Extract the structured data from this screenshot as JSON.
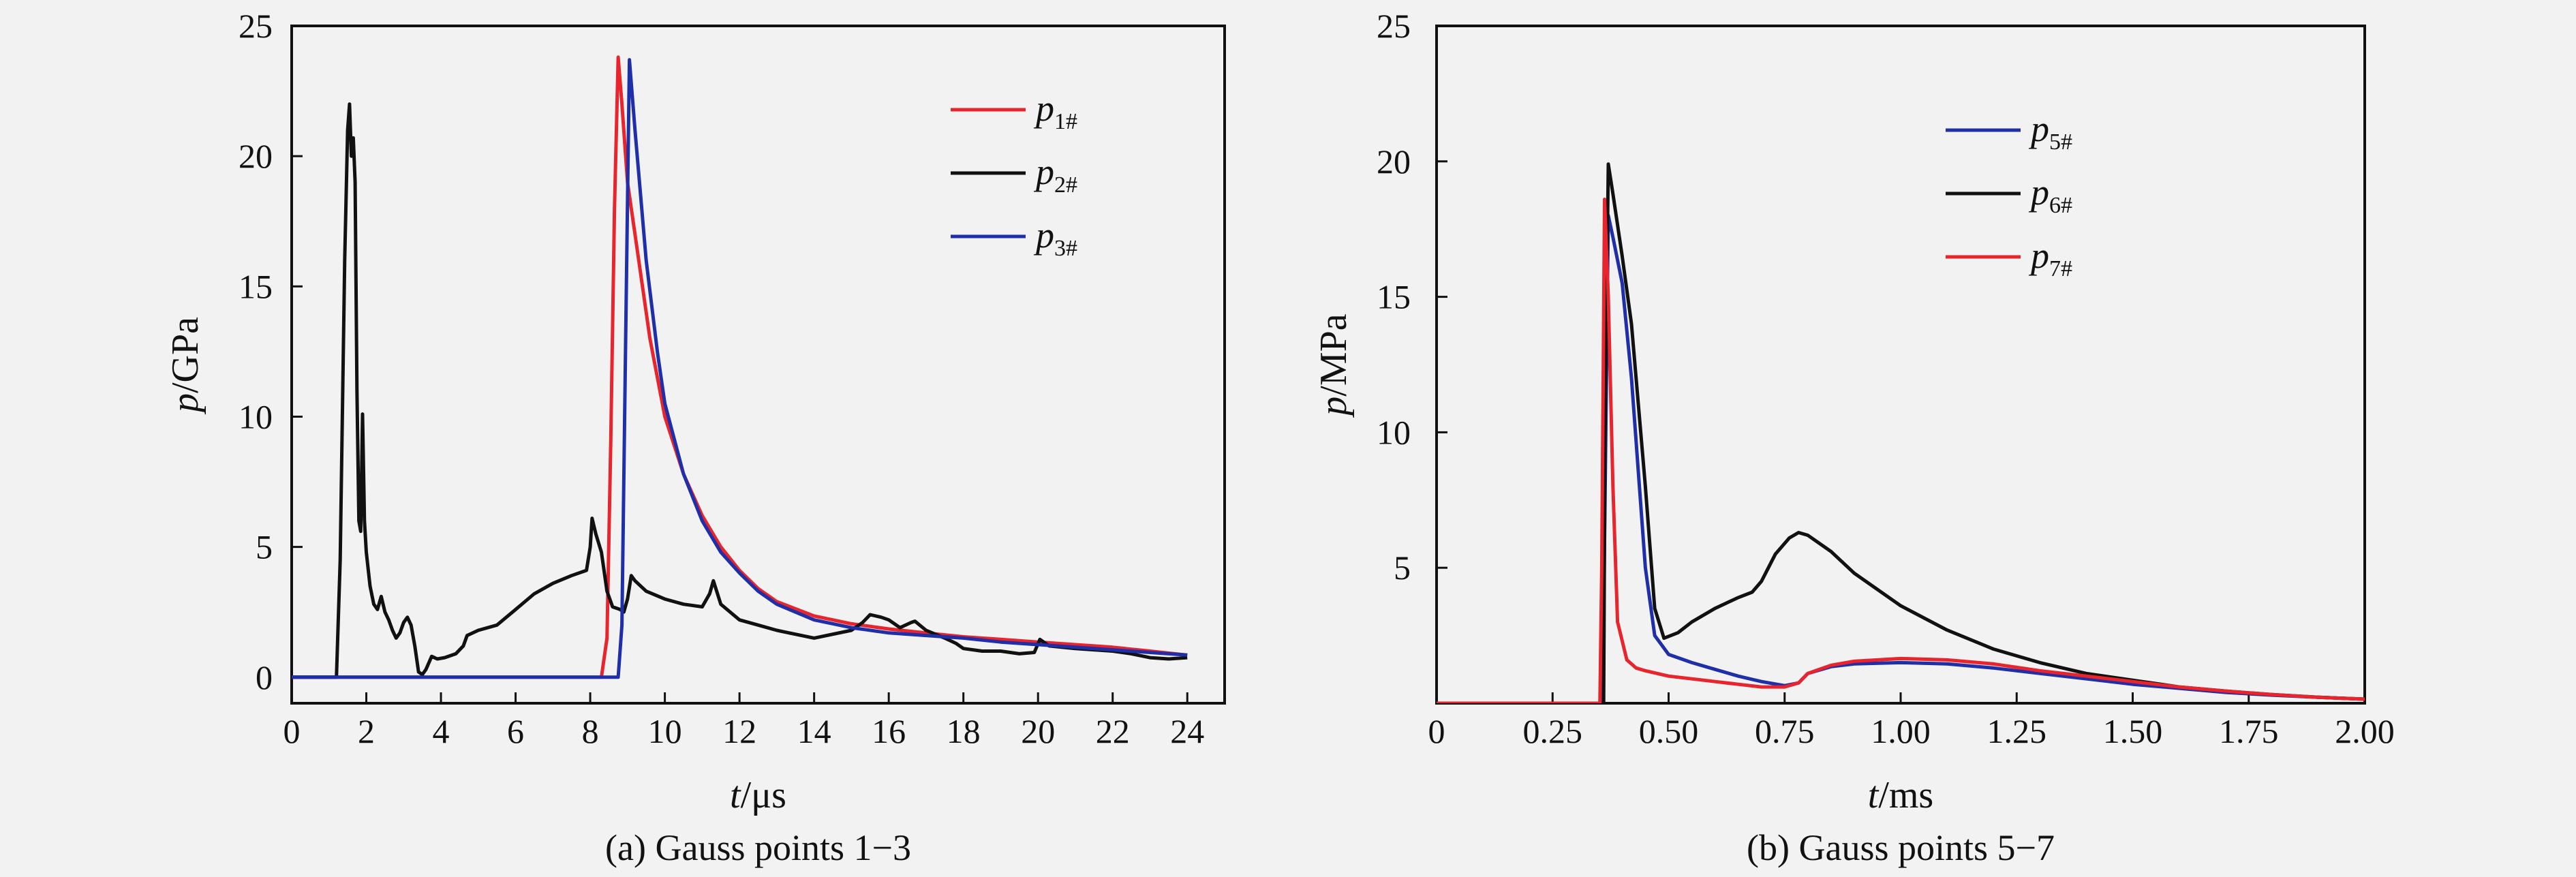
{
  "chart_data": [
    {
      "type": "line",
      "caption": "(a) Gauss points 1−3",
      "xlabel": {
        "var": "t",
        "unit": "/μs"
      },
      "ylabel": {
        "var": "p",
        "unit": "/GPa"
      },
      "xlim": [
        0,
        25
      ],
      "ylim": [
        -1,
        25
      ],
      "x_ticks": [
        0,
        2,
        4,
        6,
        8,
        10,
        12,
        14,
        16,
        18,
        20,
        22,
        24
      ],
      "x_tick_labels": [
        "0",
        "2",
        "4",
        "6",
        "8",
        "10",
        "12",
        "14",
        "16",
        "18",
        "20",
        "22",
        "24"
      ],
      "y_ticks": [
        0,
        5,
        10,
        15,
        20,
        25
      ],
      "y_tick_labels": [
        "0",
        "5",
        "10",
        "15",
        "20",
        "25"
      ],
      "legend_position": "top-right",
      "series": [
        {
          "name": "p",
          "subscript": "1#",
          "color": "#e8242c",
          "x": [
            0,
            8.3,
            8.45,
            8.55,
            8.65,
            8.75,
            8.85,
            9.0,
            9.3,
            9.6,
            10.0,
            10.5,
            11.0,
            11.5,
            12.0,
            12.5,
            13.0,
            14.0,
            15.0,
            16.0,
            17.0,
            18.0,
            19.0,
            20.0,
            21.0,
            22.0,
            23.0,
            24.0
          ],
          "y": [
            0,
            0,
            1.5,
            9.0,
            18.0,
            23.8,
            22.0,
            19.0,
            16.0,
            13.0,
            10.0,
            7.8,
            6.2,
            5.0,
            4.1,
            3.4,
            2.9,
            2.35,
            2.05,
            1.85,
            1.7,
            1.55,
            1.45,
            1.35,
            1.25,
            1.15,
            1.0,
            0.85
          ]
        },
        {
          "name": "p",
          "subscript": "2#",
          "color": "#111111",
          "x": [
            0,
            1.2,
            1.3,
            1.42,
            1.5,
            1.55,
            1.6,
            1.65,
            1.7,
            1.75,
            1.8,
            1.85,
            1.9,
            1.95,
            2.0,
            2.1,
            2.2,
            2.3,
            2.4,
            2.5,
            2.6,
            2.7,
            2.8,
            2.9,
            3.0,
            3.1,
            3.2,
            3.3,
            3.4,
            3.5,
            3.6,
            3.75,
            3.9,
            4.1,
            4.4,
            4.6,
            4.7,
            5.0,
            5.5,
            6.0,
            6.5,
            7.0,
            7.5,
            7.9,
            8.0,
            8.05,
            8.15,
            8.3,
            8.45,
            8.6,
            8.8,
            8.9,
            9.0,
            9.1,
            9.2,
            9.5,
            10.0,
            10.5,
            11.0,
            11.2,
            11.3,
            11.5,
            12.0,
            12.5,
            13.0,
            14.0,
            15.0,
            15.3,
            15.5,
            15.8,
            16.0,
            16.3,
            16.6,
            16.7,
            17.0,
            17.5,
            17.8,
            18.0,
            18.5,
            19.0,
            19.5,
            19.9,
            20.05,
            20.3,
            21.0,
            22.0,
            22.5,
            23.0,
            23.5,
            24.0
          ],
          "y": [
            0,
            0,
            4.5,
            16.0,
            21.0,
            22.0,
            20.0,
            20.7,
            19.0,
            11.0,
            6.0,
            5.6,
            10.1,
            6.0,
            4.8,
            3.5,
            2.8,
            2.6,
            3.1,
            2.5,
            2.2,
            1.8,
            1.5,
            1.7,
            2.1,
            2.3,
            2.0,
            1.2,
            0.2,
            0.1,
            0.3,
            0.8,
            0.7,
            0.75,
            0.9,
            1.2,
            1.6,
            1.8,
            2.0,
            2.6,
            3.2,
            3.6,
            3.9,
            4.1,
            5.0,
            6.1,
            5.5,
            4.8,
            3.3,
            2.7,
            2.6,
            2.5,
            3.0,
            3.9,
            3.7,
            3.3,
            3.0,
            2.8,
            2.7,
            3.2,
            3.7,
            2.8,
            2.2,
            2.0,
            1.8,
            1.5,
            1.8,
            2.1,
            2.4,
            2.3,
            2.2,
            1.9,
            2.1,
            2.15,
            1.8,
            1.5,
            1.3,
            1.1,
            1.0,
            1.0,
            0.9,
            0.95,
            1.45,
            1.2,
            1.1,
            1.0,
            0.9,
            0.75,
            0.7,
            0.75
          ]
        },
        {
          "name": "p",
          "subscript": "3#",
          "color": "#1f2fa8",
          "x": [
            0,
            8.75,
            8.85,
            8.95,
            9.05,
            9.2,
            9.5,
            9.8,
            10.0,
            10.5,
            11.0,
            11.5,
            12.0,
            12.5,
            13.0,
            14.0,
            15.0,
            16.0,
            17.0,
            18.0,
            19.0,
            20.0,
            21.0,
            22.0,
            23.0,
            24.0
          ],
          "y": [
            0,
            0,
            2.0,
            13.0,
            23.7,
            21.0,
            16.0,
            12.5,
            10.5,
            7.8,
            6.0,
            4.8,
            4.0,
            3.3,
            2.8,
            2.2,
            1.9,
            1.7,
            1.6,
            1.5,
            1.35,
            1.25,
            1.15,
            1.05,
            0.95,
            0.85
          ]
        }
      ]
    },
    {
      "type": "line",
      "caption": "(b) Gauss points 5−7",
      "xlabel": {
        "var": "t",
        "unit": "/ms"
      },
      "ylabel": {
        "var": "p",
        "unit": "/MPa"
      },
      "xlim": [
        0,
        2.0
      ],
      "ylim": [
        0,
        25
      ],
      "x_ticks": [
        0,
        0.25,
        0.5,
        0.75,
        1.0,
        1.25,
        1.5,
        1.75,
        2.0
      ],
      "x_tick_labels": [
        "0",
        "0.25",
        "0.50",
        "0.75",
        "1.00",
        "1.25",
        "1.50",
        "1.75",
        "2.00"
      ],
      "y_ticks": [
        5,
        10,
        15,
        20,
        25
      ],
      "y_tick_labels": [
        "5",
        "10",
        "15",
        "20",
        "25"
      ],
      "legend_position": "top-center",
      "series": [
        {
          "name": "p",
          "subscript": "5#",
          "color": "#1f2fa8",
          "x": [
            0,
            0.358,
            0.362,
            0.37,
            0.38,
            0.4,
            0.42,
            0.45,
            0.47,
            0.5,
            0.55,
            0.6,
            0.65,
            0.7,
            0.75,
            0.78,
            0.8,
            0.85,
            0.9,
            1.0,
            1.1,
            1.2,
            1.3,
            1.4,
            1.5,
            1.6,
            1.7,
            1.8,
            1.9,
            2.0
          ],
          "y": [
            0,
            0,
            6.0,
            18.0,
            17.2,
            15.5,
            12.0,
            5.0,
            2.5,
            1.8,
            1.5,
            1.25,
            1.0,
            0.8,
            0.65,
            0.75,
            1.1,
            1.35,
            1.45,
            1.5,
            1.45,
            1.3,
            1.1,
            0.9,
            0.7,
            0.55,
            0.4,
            0.3,
            0.22,
            0.15
          ]
        },
        {
          "name": "p",
          "subscript": "6#",
          "color": "#111111",
          "x": [
            0,
            0.36,
            0.363,
            0.37,
            0.38,
            0.4,
            0.42,
            0.45,
            0.47,
            0.49,
            0.52,
            0.55,
            0.6,
            0.65,
            0.68,
            0.7,
            0.73,
            0.76,
            0.78,
            0.8,
            0.85,
            0.9,
            1.0,
            1.1,
            1.2,
            1.3,
            1.4,
            1.5,
            1.6,
            1.7,
            1.8,
            1.9,
            2.0
          ],
          "y": [
            0,
            0,
            10.0,
            19.9,
            18.8,
            16.5,
            14.0,
            8.0,
            3.5,
            2.4,
            2.6,
            3.0,
            3.5,
            3.9,
            4.1,
            4.5,
            5.5,
            6.1,
            6.3,
            6.2,
            5.6,
            4.8,
            3.6,
            2.7,
            2.0,
            1.5,
            1.1,
            0.85,
            0.6,
            0.45,
            0.32,
            0.22,
            0.15
          ]
        },
        {
          "name": "p",
          "subscript": "7#",
          "color": "#e8242c",
          "x": [
            0,
            0.352,
            0.356,
            0.362,
            0.37,
            0.38,
            0.39,
            0.41,
            0.43,
            0.45,
            0.5,
            0.55,
            0.6,
            0.65,
            0.7,
            0.75,
            0.78,
            0.8,
            0.85,
            0.9,
            1.0,
            1.1,
            1.2,
            1.3,
            1.4,
            1.5,
            1.6,
            1.7,
            1.8,
            1.9,
            2.0
          ],
          "y": [
            0,
            0,
            5.0,
            18.6,
            15.0,
            8.0,
            3.0,
            1.6,
            1.3,
            1.2,
            1.0,
            0.9,
            0.8,
            0.7,
            0.6,
            0.6,
            0.75,
            1.1,
            1.4,
            1.55,
            1.65,
            1.6,
            1.45,
            1.2,
            1.0,
            0.8,
            0.6,
            0.45,
            0.32,
            0.22,
            0.15
          ]
        }
      ]
    }
  ]
}
